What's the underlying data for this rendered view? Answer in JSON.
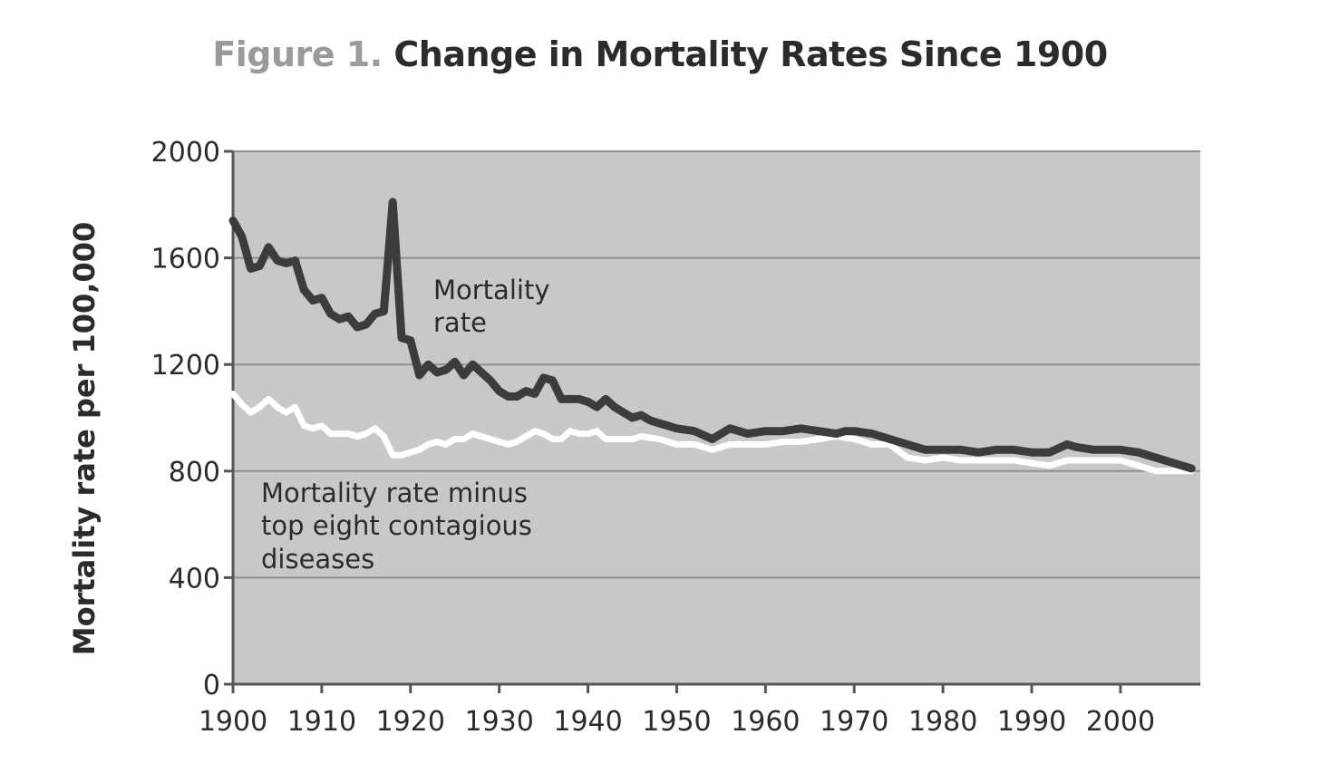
{
  "chart_data": {
    "type": "line",
    "title_prefix": "Figure 1.",
    "title": "Change in Mortality Rates Since 1900",
    "xlabel": "",
    "ylabel": "Mortality rate per 100,000",
    "xlim": [
      1900,
      2009
    ],
    "ylim": [
      0,
      2000
    ],
    "xticks": [
      1900,
      1910,
      1920,
      1930,
      1940,
      1950,
      1960,
      1970,
      1980,
      1990,
      2000
    ],
    "yticks": [
      0,
      400,
      800,
      1200,
      1600,
      2000
    ],
    "grid": true,
    "series": [
      {
        "name": "Mortality rate",
        "color": "#3c3c3c",
        "label_lines": [
          "Mortality",
          "rate"
        ],
        "x": [
          1900,
          1901,
          1902,
          1903,
          1904,
          1905,
          1906,
          1907,
          1908,
          1909,
          1910,
          1911,
          1912,
          1913,
          1914,
          1915,
          1916,
          1917,
          1918,
          1919,
          1920,
          1921,
          1922,
          1923,
          1924,
          1925,
          1926,
          1927,
          1928,
          1929,
          1930,
          1931,
          1932,
          1933,
          1934,
          1935,
          1936,
          1937,
          1938,
          1939,
          1940,
          1941,
          1942,
          1943,
          1944,
          1945,
          1946,
          1947,
          1948,
          1949,
          1950,
          1952,
          1954,
          1955,
          1956,
          1957,
          1958,
          1960,
          1962,
          1964,
          1966,
          1968,
          1969,
          1970,
          1972,
          1974,
          1976,
          1978,
          1980,
          1982,
          1984,
          1986,
          1988,
          1990,
          1992,
          1994,
          1995,
          1997,
          1999,
          2000,
          2002,
          2004,
          2006,
          2008
        ],
        "values": [
          1740,
          1680,
          1560,
          1570,
          1640,
          1590,
          1580,
          1590,
          1480,
          1440,
          1450,
          1390,
          1370,
          1380,
          1340,
          1350,
          1390,
          1400,
          1810,
          1300,
          1290,
          1160,
          1200,
          1170,
          1180,
          1210,
          1160,
          1200,
          1170,
          1140,
          1100,
          1080,
          1080,
          1100,
          1090,
          1150,
          1140,
          1070,
          1070,
          1070,
          1060,
          1040,
          1070,
          1040,
          1020,
          1000,
          1010,
          990,
          980,
          970,
          960,
          950,
          920,
          940,
          960,
          950,
          940,
          950,
          950,
          960,
          950,
          940,
          950,
          950,
          940,
          920,
          900,
          880,
          880,
          880,
          870,
          880,
          880,
          870,
          870,
          900,
          890,
          880,
          880,
          880,
          870,
          850,
          830,
          810
        ]
      },
      {
        "name": "Mortality rate minus top eight contagious diseases",
        "color": "#ffffff",
        "label_lines": [
          "Mortality rate minus",
          "top eight contagious",
          "diseases"
        ],
        "x": [
          1900,
          1901,
          1902,
          1903,
          1904,
          1905,
          1906,
          1907,
          1908,
          1909,
          1910,
          1911,
          1912,
          1913,
          1914,
          1915,
          1916,
          1917,
          1918,
          1919,
          1920,
          1921,
          1922,
          1923,
          1924,
          1925,
          1926,
          1927,
          1928,
          1929,
          1930,
          1931,
          1932,
          1933,
          1934,
          1935,
          1936,
          1937,
          1938,
          1939,
          1940,
          1941,
          1942,
          1943,
          1944,
          1945,
          1946,
          1948,
          1950,
          1952,
          1954,
          1956,
          1958,
          1960,
          1962,
          1964,
          1966,
          1968,
          1970,
          1972,
          1974,
          1976,
          1978,
          1980,
          1982,
          1984,
          1986,
          1988,
          1990,
          1992,
          1994,
          1996,
          1998,
          2000,
          2002,
          2004,
          2006,
          2008
        ],
        "values": [
          1090,
          1050,
          1020,
          1040,
          1070,
          1040,
          1020,
          1040,
          970,
          960,
          970,
          940,
          940,
          940,
          930,
          940,
          960,
          930,
          860,
          860,
          870,
          880,
          900,
          910,
          900,
          920,
          920,
          940,
          930,
          920,
          910,
          900,
          910,
          930,
          950,
          940,
          920,
          920,
          950,
          940,
          940,
          950,
          920,
          920,
          920,
          920,
          930,
          920,
          900,
          900,
          880,
          900,
          900,
          900,
          910,
          910,
          920,
          930,
          920,
          900,
          900,
          850,
          840,
          850,
          840,
          840,
          840,
          840,
          830,
          820,
          840,
          840,
          840,
          840,
          820,
          800,
          800,
          800
        ]
      }
    ]
  }
}
